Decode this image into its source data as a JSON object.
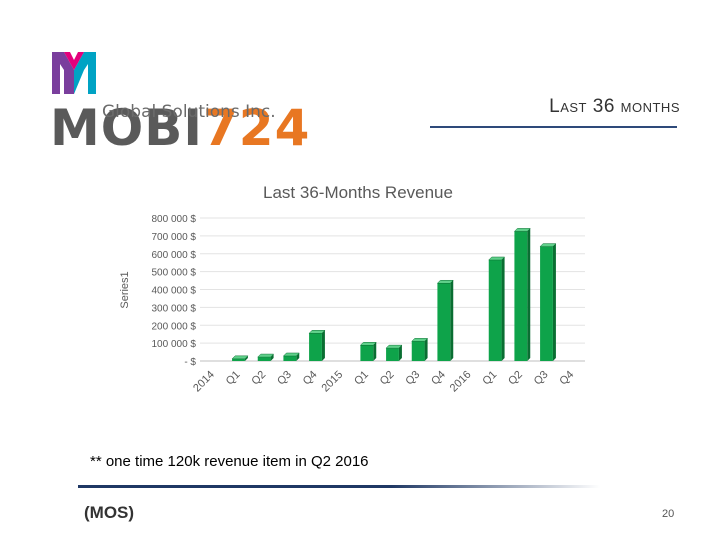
{
  "header": {
    "logo_primary": "MOBI",
    "logo_accent": "724",
    "logo_subtitle": "Global Solutions Inc.",
    "slide_title": "Last 36 months"
  },
  "colors": {
    "bar": "#0ea34a",
    "bar_dark": "#0a6e32",
    "accent_orange": "#e87722",
    "rule_blue": "#2e4a7a"
  },
  "chart_data": {
    "type": "bar",
    "title": "Last 36-Months Revenue",
    "ylabel": "Series1",
    "xlabel": "",
    "ylim": [
      0,
      800000
    ],
    "y_ticks": [
      "800 000 $",
      "700 000 $",
      "600 000 $",
      "500 000 $",
      "400 000 $",
      "300 000 $",
      "200 000 $",
      "100 000 $",
      "- $"
    ],
    "y_tick_values": [
      800000,
      700000,
      600000,
      500000,
      400000,
      300000,
      200000,
      100000,
      0
    ],
    "grid": true,
    "legend": "none",
    "categories": [
      "2014",
      "Q1",
      "Q2",
      "Q3",
      "Q4",
      "2015",
      "Q1",
      "Q2",
      "Q3",
      "Q4",
      "2016",
      "Q1",
      "Q2",
      "Q3",
      "Q4"
    ],
    "values": [
      0,
      12000,
      22000,
      28000,
      155000,
      0,
      88000,
      72000,
      110000,
      435000,
      0,
      565000,
      725000,
      640000,
      0
    ]
  },
  "footnote": "** one time 120k revenue item in Q2  2016",
  "footer": {
    "left_label": "(MOS)",
    "page_number": "20"
  }
}
